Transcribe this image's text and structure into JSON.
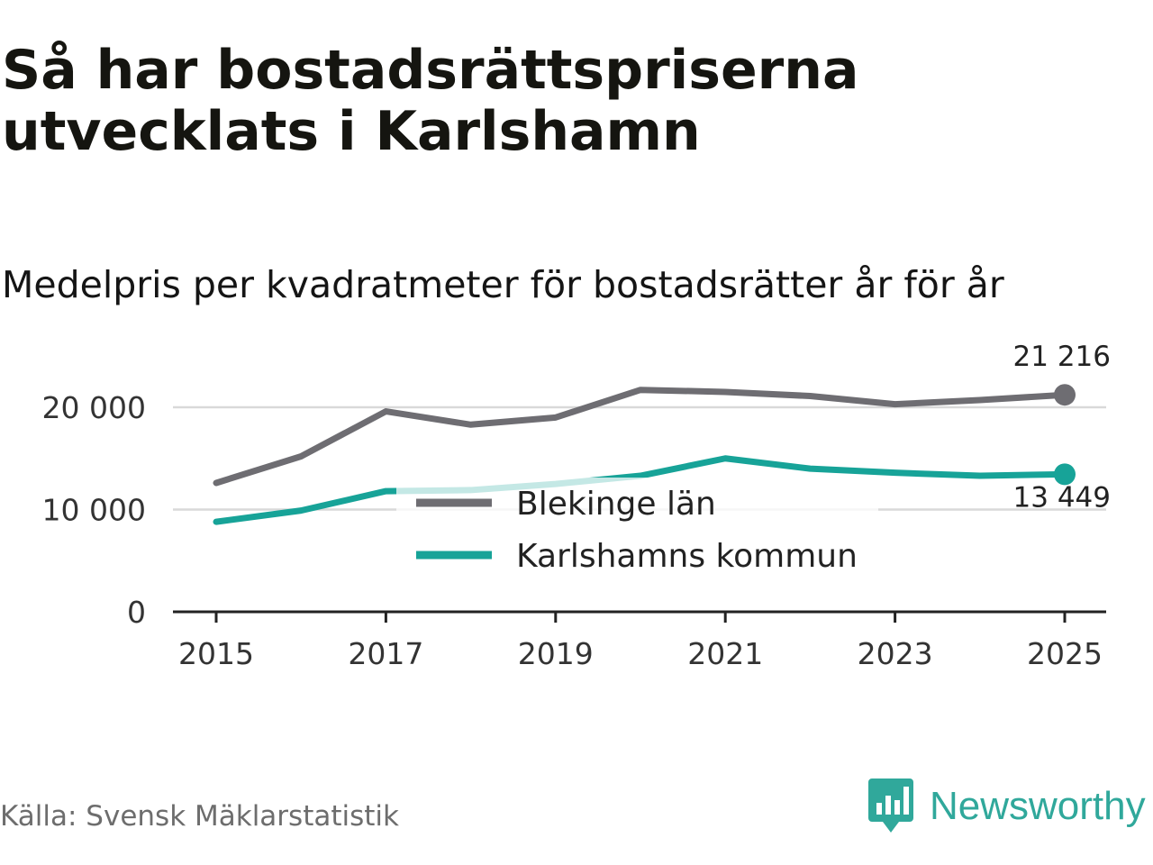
{
  "title": "Så har bostadsrättspriserna utvecklats i Karlshamn",
  "subtitle": "Medelpris per kvadratmeter för bostadsrätter år för år",
  "source": "Källa: Svensk Mäklarstatistik",
  "brand": "Newsworthy",
  "colors": {
    "blekinge": "#6e6d72",
    "karlshamn": "#17a398",
    "grid": "#d9d9d9",
    "axis": "#222222",
    "brand": "#30a89b"
  },
  "chart_data": {
    "type": "line",
    "title": "Så har bostadsrättspriserna utvecklats i Karlshamn",
    "subtitle": "Medelpris per kvadratmeter för bostadsrätter år för år",
    "x": [
      2015,
      2016,
      2017,
      2018,
      2019,
      2020,
      2021,
      2022,
      2023,
      2024,
      2025
    ],
    "x_ticks": [
      2015,
      2017,
      2019,
      2021,
      2023,
      2025
    ],
    "x_tick_labels": [
      "2015",
      "2017",
      "2019",
      "2021",
      "2023",
      "2025"
    ],
    "y_ticks": [
      0,
      10000,
      20000
    ],
    "y_tick_labels": [
      "0",
      "10 000",
      "20 000"
    ],
    "ylim": [
      0,
      22000
    ],
    "xlabel": "",
    "ylabel": "",
    "grid": true,
    "legend_position": "center",
    "series": [
      {
        "name": "Blekinge län",
        "values": [
          12600,
          15200,
          19600,
          18300,
          19000,
          21700,
          21500,
          21100,
          20300,
          20700,
          21216
        ],
        "end_label": "21 216"
      },
      {
        "name": "Karlshamns kommun",
        "values": [
          8800,
          9900,
          11800,
          11900,
          12500,
          13300,
          15000,
          14000,
          13600,
          13300,
          13449
        ],
        "end_label": "13 449"
      }
    ]
  }
}
